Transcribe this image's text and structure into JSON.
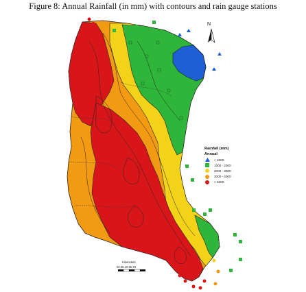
{
  "caption": "Figure 8: Annual Rainfall (in mm) with contours and rain gauge stations",
  "north_label": "N",
  "legend": {
    "title": "Rainfall (mm)",
    "subtitle": "Annual",
    "items": [
      {
        "label": "< 1000",
        "color": "#1f5fd6",
        "symbol": "triangle"
      },
      {
        "label": "1000 - 2000",
        "color": "#2fb53a",
        "symbol": "square"
      },
      {
        "label": "2000 - 3000",
        "color": "#f3d21a",
        "symbol": "circle"
      },
      {
        "label": "3000 - 4000",
        "color": "#f29a12",
        "symbol": "circle"
      },
      {
        "label": "> 4000",
        "color": "#d8161a",
        "symbol": "circle"
      }
    ]
  },
  "scale_bar": {
    "title": "Kilometers",
    "ticks": "02.55  10  15  20"
  },
  "zone_colors": {
    "very_low": "#1f5fd6",
    "low": "#2fb53a",
    "medium": "#f3d21a",
    "high": "#f29a12",
    "very_high": "#d8161a"
  }
}
